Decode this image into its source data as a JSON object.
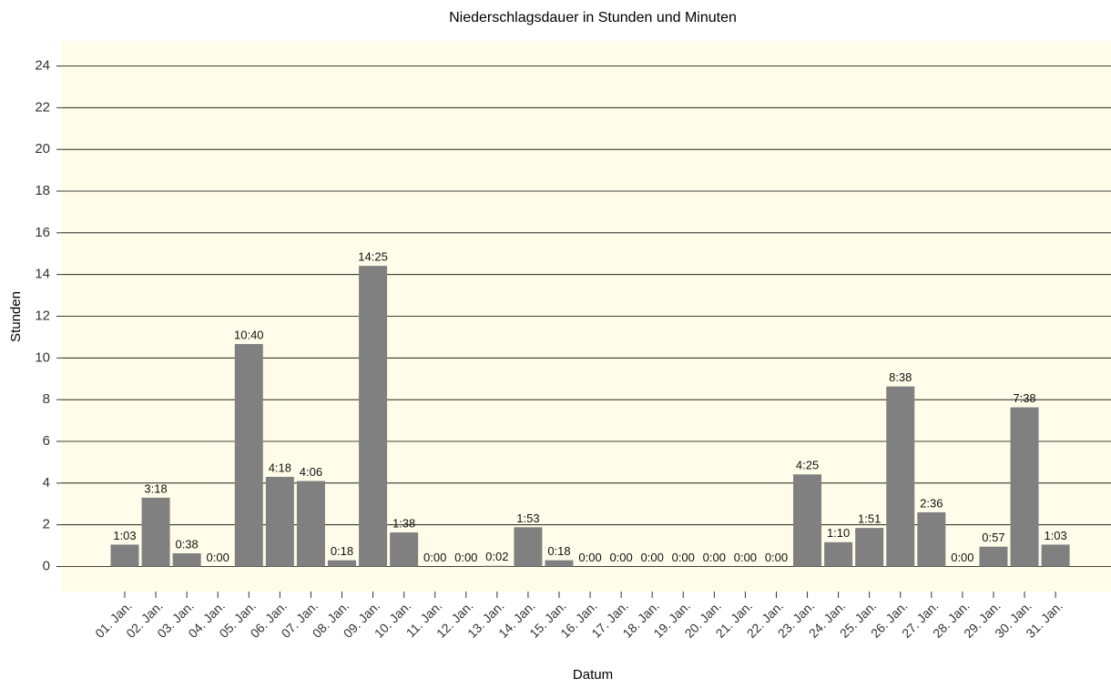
{
  "chart_data": {
    "type": "bar",
    "title": "Niederschlagsdauer in Stunden und Minuten",
    "x_label": "Datum",
    "y_label": "Stunden",
    "categories": [
      "01. Jan.",
      "02. Jan.",
      "03. Jan.",
      "04. Jan.",
      "05. Jan.",
      "06. Jan.",
      "07. Jan.",
      "08. Jan.",
      "09. Jan.",
      "10. Jan.",
      "11. Jan.",
      "12. Jan.",
      "13. Jan.",
      "14. Jan.",
      "15. Jan.",
      "16. Jan.",
      "17. Jan.",
      "18. Jan.",
      "19. Jan.",
      "20. Jan.",
      "21. Jan.",
      "22. Jan.",
      "23. Jan.",
      "24. Jan.",
      "25. Jan.",
      "26. Jan.",
      "27. Jan.",
      "28. Jan.",
      "29. Jan.",
      "30. Jan.",
      "31. Jan."
    ],
    "values": [
      1.05,
      3.3,
      0.633,
      0,
      10.667,
      4.3,
      4.1,
      0.3,
      14.417,
      1.633,
      0,
      0,
      0.033,
      1.883,
      0.3,
      0,
      0,
      0,
      0,
      0,
      0,
      0,
      4.417,
      1.167,
      1.85,
      8.633,
      2.6,
      0,
      0.95,
      7.633,
      1.05
    ],
    "value_labels": [
      "1:03",
      "3:18",
      "0:38",
      "0:00",
      "10:40",
      "4:18",
      "4:06",
      "0:18",
      "14:25",
      "1:38",
      "0:00",
      "0:00",
      "0:02",
      "1:53",
      "0:18",
      "0:00",
      "0:00",
      "0:00",
      "0:00",
      "0:00",
      "0:00",
      "0:00",
      "4:25",
      "1:10",
      "1:51",
      "8:38",
      "2:36",
      "0:00",
      "0:57",
      "7:38",
      "1:03"
    ],
    "color": "#808080",
    "ylim": [
      -1.2,
      25.2
    ],
    "yticks": [
      0,
      2,
      4,
      6,
      8,
      10,
      12,
      14,
      16,
      18,
      20,
      22,
      24
    ],
    "grid": true
  }
}
